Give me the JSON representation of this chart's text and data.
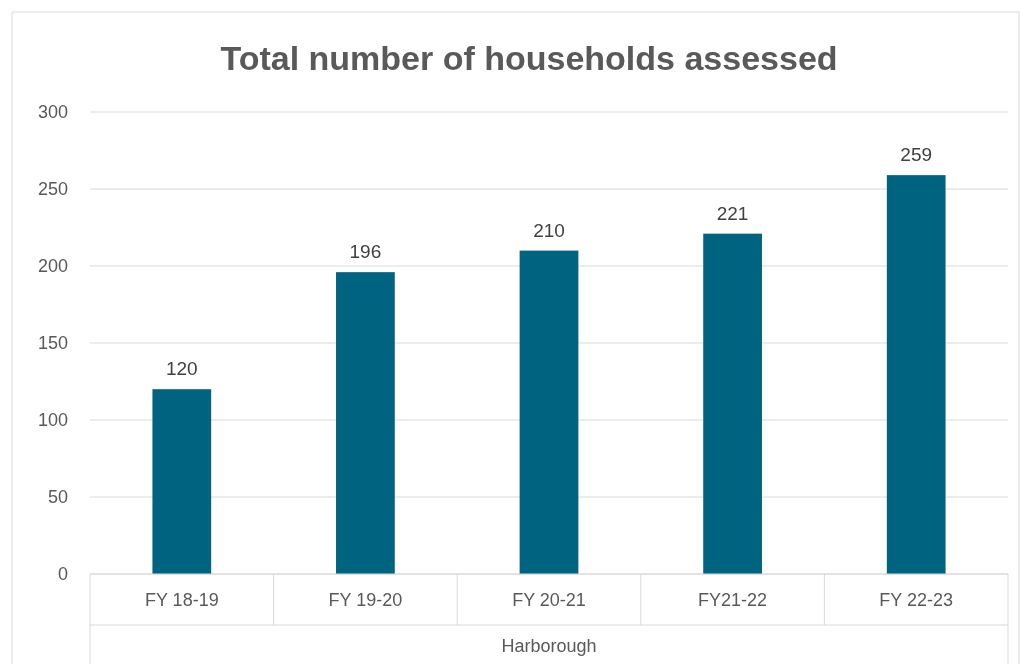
{
  "chart_data": {
    "type": "bar",
    "title": "Total number of households assessed",
    "xlabel": "Harborough",
    "categories": [
      "FY 18-19",
      "FY 19-20",
      "FY 20-21",
      "FY21-22",
      "FY 22-23"
    ],
    "values": [
      120,
      196,
      210,
      221,
      259
    ],
    "color": "#006380",
    "ylim": [
      0,
      300
    ],
    "yticks": [
      0,
      50,
      100,
      150,
      200,
      250,
      300
    ],
    "grid": "y",
    "data_labels": true
  }
}
